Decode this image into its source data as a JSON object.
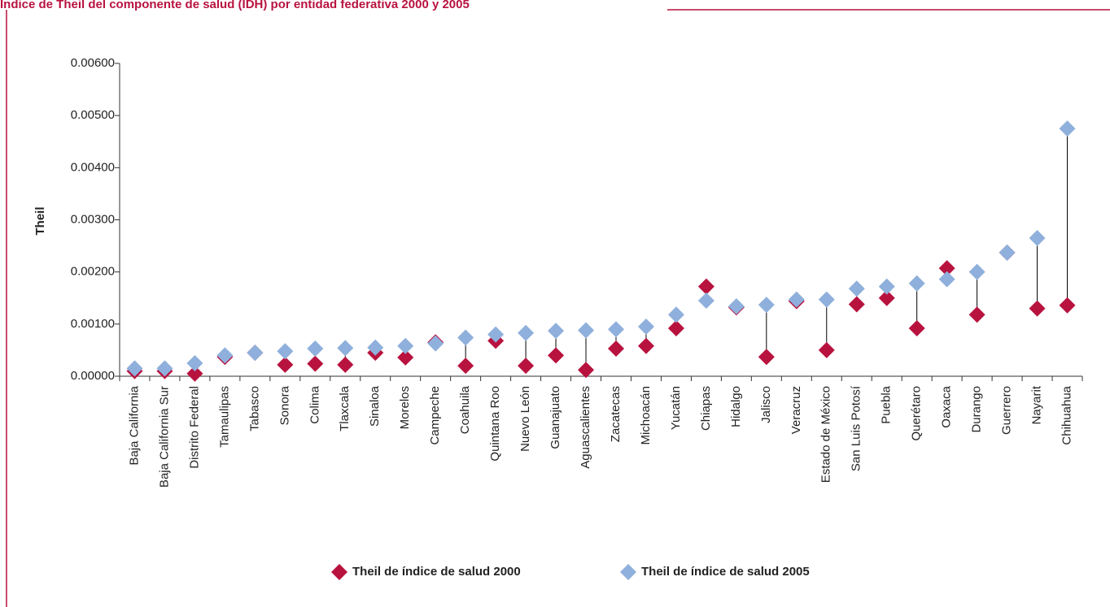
{
  "chart_data": {
    "type": "dot",
    "title": "Índice de Theil del componente de salud (IDH) por entidad federativa 2000 y 2005",
    "ylabel": "Theil",
    "categories": [
      "Baja California",
      "Baja California Sur",
      "Distrito Federal",
      "Tamaulipas",
      "Tabasco",
      "Sonora",
      "Colima",
      "Tlaxcala",
      "Sinaloa",
      "Morelos",
      "Campeche",
      "Coahuila",
      "Quintana Roo",
      "Nuevo León",
      "Guanajuato",
      "Aguascalientes",
      "Zacatecas",
      "Michoacán",
      "Yucatán",
      "Chiapas",
      "Hidalgo",
      "Jalisco",
      "Veracruz",
      "Estado de México",
      "San Luis Potosí",
      "Puebla",
      "Querétaro",
      "Oaxaca",
      "Durango",
      "Guerrero",
      "Nayarit",
      "Chihuahua"
    ],
    "series": [
      {
        "name": "Theil de índice de salud 2000",
        "color": "#b8123f",
        "values": [
          0.0001,
          0.0001,
          5e-05,
          0.00037,
          0.00045,
          0.00022,
          0.00024,
          0.00022,
          0.00045,
          0.00036,
          0.00065,
          0.0002,
          0.00068,
          0.0002,
          0.0004,
          0.00012,
          0.00053,
          0.00058,
          0.00092,
          0.00172,
          0.00132,
          0.00037,
          0.00144,
          0.0005,
          0.00138,
          0.0015,
          0.00092,
          0.00207,
          0.00118,
          0.00237,
          0.0013,
          0.00136
        ]
      },
      {
        "name": "Theil de índice de salud 2005",
        "color": "#8fb0dc",
        "values": [
          0.00015,
          0.00015,
          0.00025,
          0.0004,
          0.00045,
          0.00048,
          0.00053,
          0.00054,
          0.00055,
          0.00058,
          0.00063,
          0.00074,
          0.0008,
          0.00083,
          0.00087,
          0.00088,
          0.0009,
          0.00095,
          0.00118,
          0.00145,
          0.00134,
          0.00137,
          0.00147,
          0.00147,
          0.00168,
          0.00172,
          0.00178,
          0.00186,
          0.002,
          0.00237,
          0.00265,
          0.00475
        ]
      }
    ],
    "ylim": [
      0,
      0.006
    ],
    "yticks": [
      {
        "value": 0,
        "label": "0.00000"
      },
      {
        "value": 0.001,
        "label": "0.00100"
      },
      {
        "value": 0.002,
        "label": "0.00200"
      },
      {
        "value": 0.003,
        "label": "0.00300"
      },
      {
        "value": 0.004,
        "label": "0.00400"
      },
      {
        "value": 0.005,
        "label": "0.00500"
      },
      {
        "value": 0.006,
        "label": "0.00600"
      }
    ],
    "legend": "bottom"
  }
}
